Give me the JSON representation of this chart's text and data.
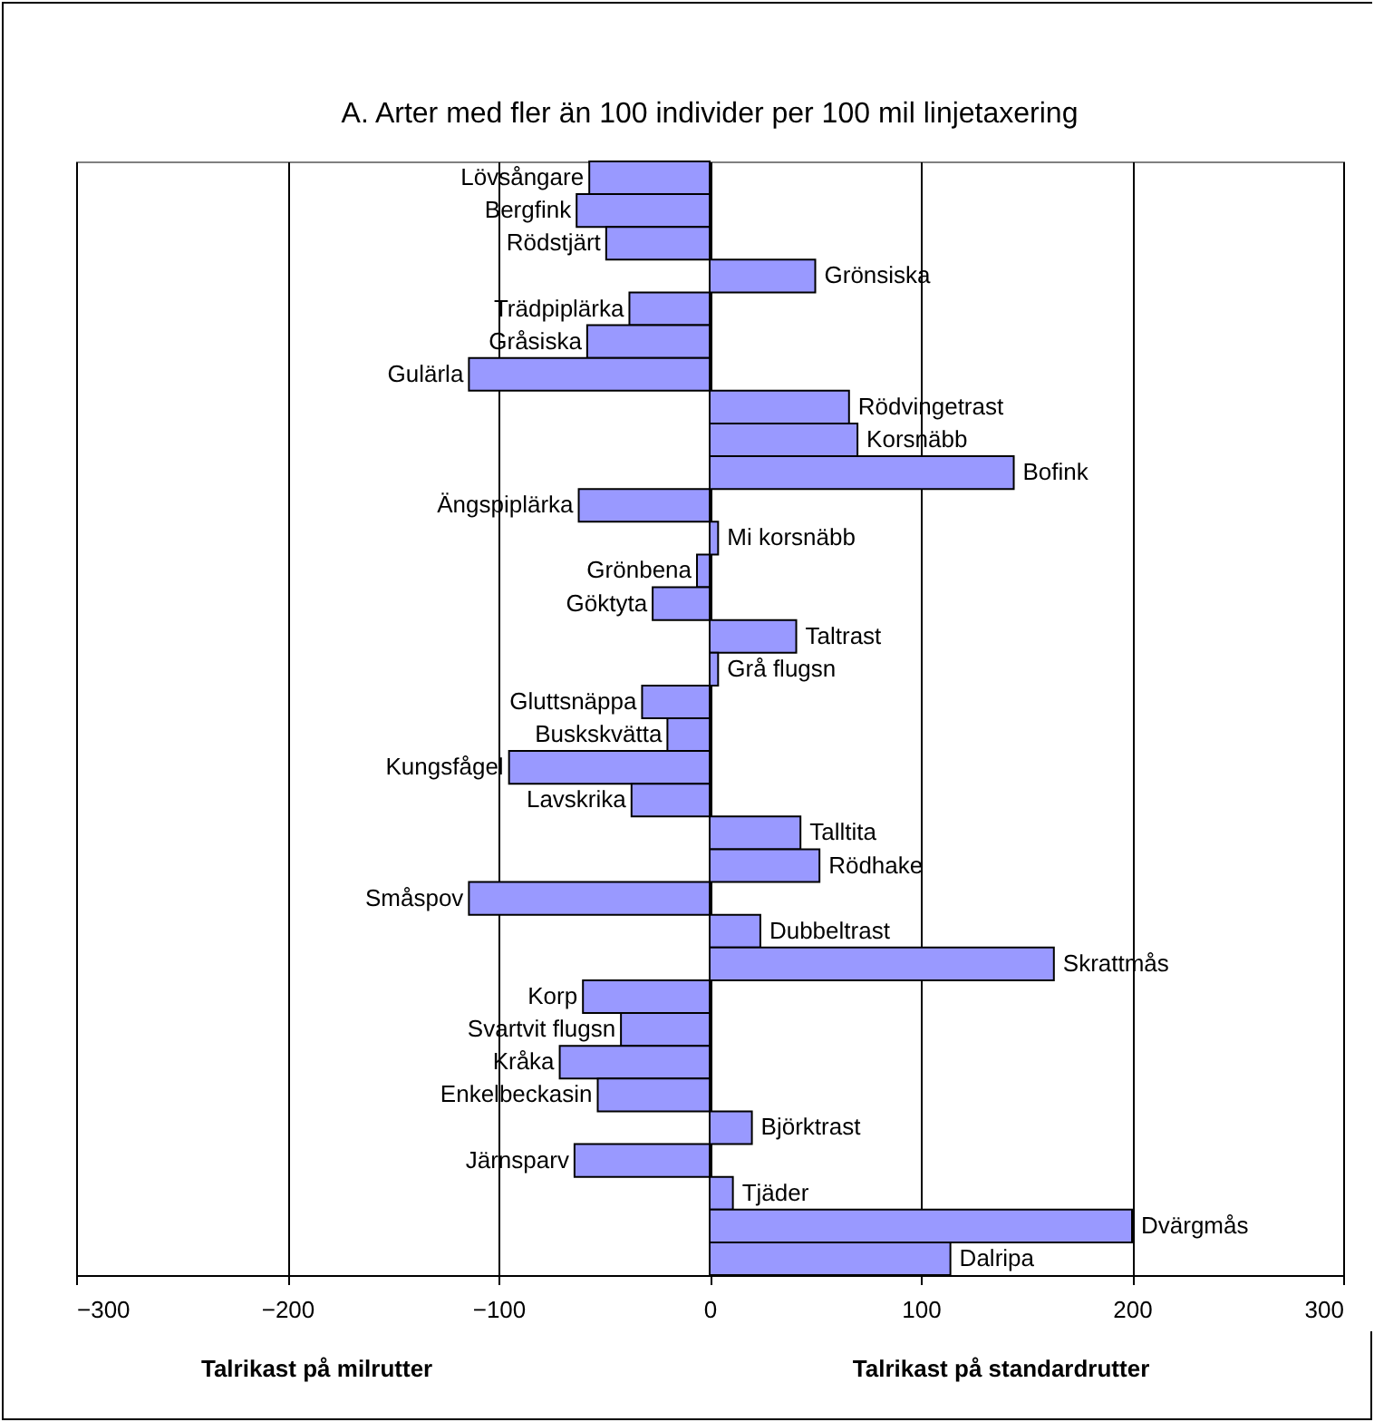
{
  "chart_data": {
    "type": "bar",
    "orientation": "horizontal",
    "title": "A. Arter med fler än 100 individer per 100 mil linjetaxering",
    "categories": [
      "Lövsångare",
      "Bergfink",
      "Rödstjärt",
      "Grönsiska",
      "Trädpiplärka",
      "Gråsiska",
      "Gulärla",
      "Rödvingetrast",
      "Korsnäbb",
      "Bofink",
      "Ängspiplärka",
      "Mi korsnäbb",
      "Grönbena",
      "Göktyta",
      "Taltrast",
      "Grå flugsn",
      "Gluttsnäppa",
      "Buskskvätta",
      "Kungsfågel",
      "Lavskrika",
      "Talltita",
      "Rödhake",
      "Småspov",
      "Dubbeltrast",
      "Skrattmås",
      "Korp",
      "Svartvit flugsn",
      "Kråka",
      "Enkelbeckasin",
      "Björktrast",
      "Järnsparv",
      "Tjäder",
      "Dvärgmås",
      "Dalripa"
    ],
    "values": [
      -57,
      -63,
      -49,
      50,
      -38,
      -58,
      -114,
      66,
      70,
      144,
      -62,
      4,
      -6,
      -27,
      41,
      4,
      -32,
      -20,
      -95,
      -37,
      43,
      52,
      -114,
      24,
      163,
      -60,
      -42,
      -71,
      -53,
      20,
      -64,
      11,
      200,
      114
    ],
    "color": "#9999ff",
    "xlim": [
      -300,
      300
    ],
    "xticks": [
      -300,
      -200,
      -100,
      0,
      100,
      200,
      300
    ],
    "grid": "x",
    "annotations": [
      "Talrikast på milrutter",
      "Talrikast på standardrutter"
    ]
  }
}
